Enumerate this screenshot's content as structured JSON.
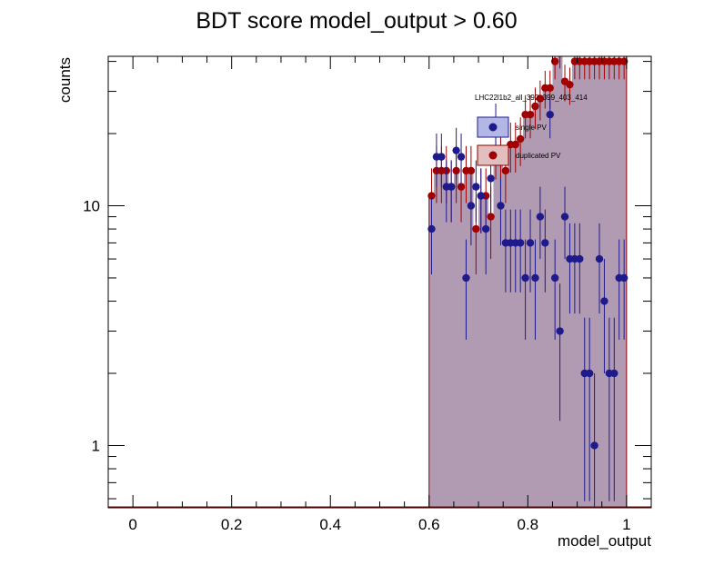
{
  "chart_data": {
    "type": "histogram-with-errors",
    "title": "BDT score  model_output > 0.60",
    "xlabel": "model_output",
    "ylabel": "counts",
    "xlim": [
      -0.05,
      1.05
    ],
    "ylim": [
      0.55,
      42
    ],
    "y_log": true,
    "x_ticks": [
      "0",
      "0.2",
      "0.4",
      "0.6",
      "0.8",
      "1"
    ],
    "y_ticks": [
      "1",
      "10"
    ],
    "legend": {
      "header": "LHC22l1b2_all_392_399_403_414",
      "entries": [
        "single PV",
        "duplicated PV"
      ]
    },
    "colors": {
      "single_marker": "#1f1a8c",
      "single_fill": "#b19bb2",
      "duplicated_marker": "#a00000",
      "duplicated_fill": "#e3bebe",
      "frame": "#8b0000"
    },
    "bin_centers": [
      0.605,
      0.615,
      0.625,
      0.635,
      0.645,
      0.655,
      0.665,
      0.675,
      0.685,
      0.695,
      0.705,
      0.715,
      0.725,
      0.735,
      0.745,
      0.755,
      0.765,
      0.775,
      0.785,
      0.795,
      0.805,
      0.815,
      0.825,
      0.835,
      0.845,
      0.855,
      0.865,
      0.875,
      0.885,
      0.895,
      0.905,
      0.915,
      0.925,
      0.935,
      0.945,
      0.955,
      0.965,
      0.975,
      0.985,
      0.995
    ],
    "series": [
      {
        "name": "single PV",
        "values": [
          8,
          16,
          16,
          12,
          12,
          17,
          16,
          5,
          10,
          12,
          11,
          8,
          13,
          22,
          10,
          7,
          7,
          7,
          7,
          5,
          7,
          5,
          9,
          7,
          24,
          5,
          3,
          9,
          6,
          6,
          6,
          2,
          2,
          1,
          6,
          4,
          2,
          2,
          5,
          5
        ]
      },
      {
        "name": "duplicated PV",
        "values": [
          11,
          14,
          14,
          14,
          12,
          14,
          12,
          14,
          14,
          8,
          11,
          11,
          9,
          17,
          16,
          14,
          18,
          18,
          19,
          24,
          24,
          26,
          28,
          31,
          31,
          40,
          44,
          33,
          32,
          40,
          40,
          40,
          40,
          40,
          40,
          40,
          40,
          40,
          40,
          40
        ]
      }
    ]
  }
}
